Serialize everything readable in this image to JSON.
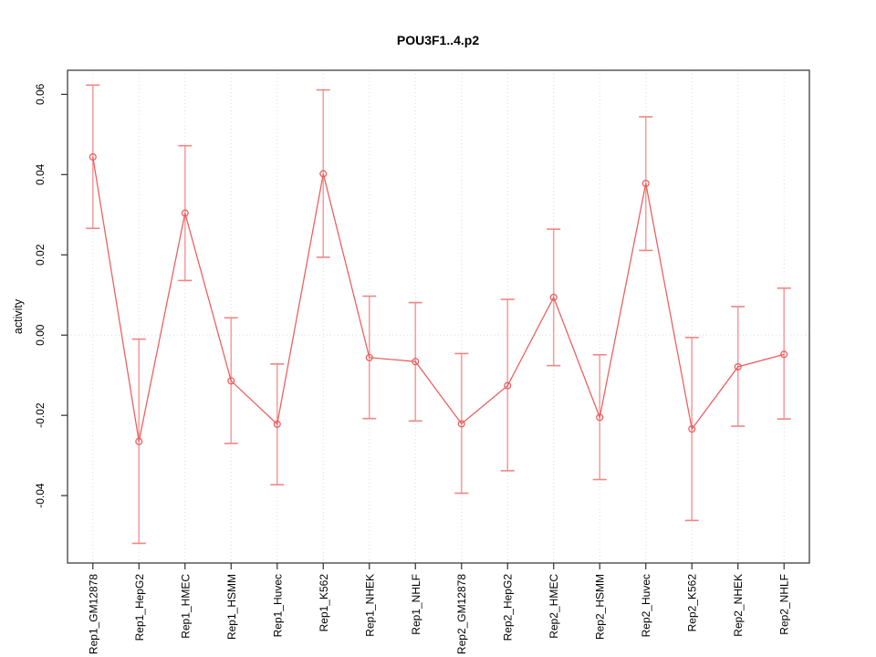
{
  "chart_data": {
    "type": "line",
    "title": "POU3F1..4.p2",
    "ylabel": "activity",
    "xlabel": "",
    "categories": [
      "Rep1_GM12878",
      "Rep1_HepG2",
      "Rep1_HMEC",
      "Rep1_HSMM",
      "Rep1_Huvec",
      "Rep1_K562",
      "Rep1_NHEK",
      "Rep1_NHLF",
      "Rep2_GM12878",
      "Rep2_HepG2",
      "Rep2_HMEC",
      "Rep2_HSMM",
      "Rep2_Huvec",
      "Rep2_K562",
      "Rep2_NHEK",
      "Rep2_NHLF"
    ],
    "series": [
      {
        "name": "activity",
        "values": [
          0.0444,
          -0.0265,
          0.0304,
          -0.0114,
          -0.0222,
          0.0402,
          -0.0056,
          -0.0066,
          -0.0221,
          -0.0126,
          0.0094,
          -0.0205,
          0.0378,
          -0.0234,
          -0.0079,
          -0.0048
        ],
        "ci_low": [
          0.0266,
          -0.0519,
          0.0136,
          -0.027,
          -0.0373,
          0.0194,
          -0.0208,
          -0.0214,
          -0.0394,
          -0.0338,
          -0.0076,
          -0.036,
          0.0211,
          -0.0462,
          -0.0227,
          -0.0209
        ],
        "ci_high": [
          0.0623,
          -0.001,
          0.0472,
          0.0043,
          -0.0072,
          0.0611,
          0.0097,
          0.0081,
          -0.0046,
          0.0089,
          0.0264,
          -0.0049,
          0.0544,
          -0.0006,
          0.0071,
          0.0117
        ]
      }
    ],
    "ylim": [
      -0.0568,
      0.066
    ],
    "xlim": [
      0.45,
      16.55
    ],
    "yticks": [
      -0.04,
      -0.02,
      0,
      0.02,
      0.04,
      0.06
    ],
    "ytick_labels": [
      "-0.04",
      "-0.02",
      "0.00",
      "0.02",
      "0.04",
      "0.06"
    ],
    "point_style": "open-circle",
    "error_bars": true,
    "grid": {
      "vertical_dotted_per_category": true,
      "zero_line_dotted": true,
      "horizontal_gridlines": false
    },
    "legend": "none",
    "colors": {
      "series": "#ec5c5c",
      "error_bar": "#f4a0a0",
      "error_cap": "#f08585",
      "grid": "#dcdcdc",
      "frame": "#2f2f2f",
      "text": "#000000",
      "background": "#ffffff"
    }
  }
}
